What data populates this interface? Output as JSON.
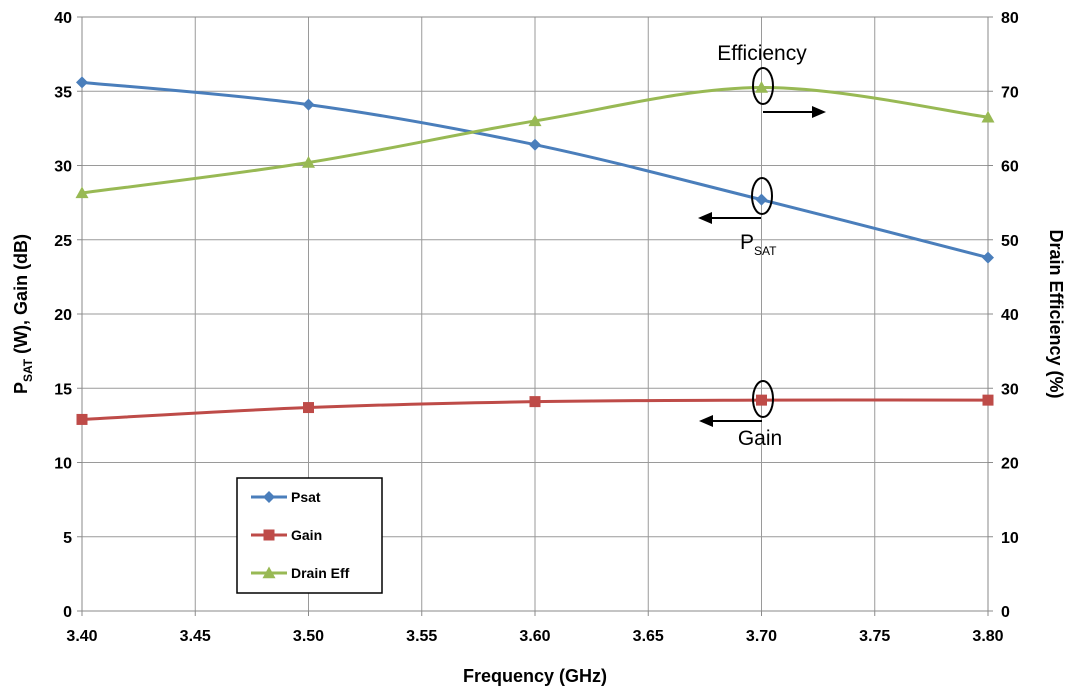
{
  "chart_data": {
    "type": "line",
    "title": "",
    "xlabel": "Frequency (GHz)",
    "ylabel_left": {
      "main": "P",
      "sub": "SAT",
      "rest": " (W), Gain (dB)"
    },
    "ylabel_right": "Drain Efficiency (%)",
    "x": [
      3.4,
      3.5,
      3.6,
      3.7,
      3.8
    ],
    "x_ticks": [
      "3.40",
      "3.45",
      "3.50",
      "3.55",
      "3.60",
      "3.65",
      "3.70",
      "3.75",
      "3.80"
    ],
    "xlim": [
      3.4,
      3.8
    ],
    "ylim_left": [
      0,
      40
    ],
    "y_ticks_left": [
      "0",
      "5",
      "10",
      "15",
      "20",
      "25",
      "30",
      "35",
      "40"
    ],
    "ylim_right": [
      0,
      80
    ],
    "y_ticks_right": [
      "0",
      "10",
      "20",
      "30",
      "40",
      "50",
      "60",
      "70",
      "80"
    ],
    "grid": true,
    "legend_position": "bottom-left",
    "series": [
      {
        "name": "Psat",
        "axis": "left",
        "color": "#4a7ebb",
        "marker": "diamond",
        "values": [
          35.6,
          34.1,
          31.4,
          27.7,
          23.8
        ]
      },
      {
        "name": "Gain",
        "axis": "left",
        "color": "#be4b48",
        "marker": "square",
        "values": [
          12.9,
          13.7,
          14.1,
          14.2,
          14.2
        ]
      },
      {
        "name": "Drain Eff",
        "axis": "right",
        "color": "#98b954",
        "marker": "triangle",
        "values": [
          56.3,
          60.4,
          66.0,
          70.5,
          66.5
        ]
      }
    ],
    "annotations": {
      "efficiency": "Efficiency",
      "psat_main": "P",
      "psat_sub": "SAT",
      "gain": "Gain"
    }
  }
}
